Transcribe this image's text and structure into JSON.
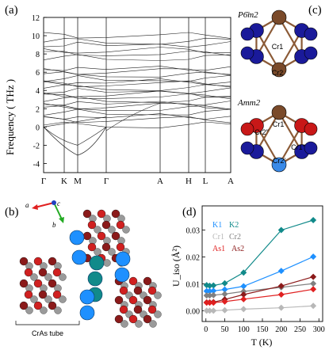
{
  "panels": {
    "a": "(a)",
    "b": "(b)",
    "c": "(c)",
    "d": "(d)"
  },
  "panel_a": {
    "ylabel": "Frequency ( THz )",
    "yticks": [
      "-4",
      "-2",
      "0",
      "2",
      "4",
      "6",
      "8",
      "10",
      "12"
    ],
    "xticks": [
      "Γ",
      "K",
      "M",
      "Γ",
      "A",
      "H",
      "L",
      "A"
    ]
  },
  "panel_b": {
    "axis_a": "a",
    "axis_b": "b",
    "axis_c": "c",
    "tube_label": "CrAs tube"
  },
  "panel_c": {
    "group1": "P6̄m2",
    "group2": "Amm2",
    "top_cr1": "Cr1",
    "top_cr2": "Cr2",
    "bot_cr1p": "Cr1′",
    "bot_cr2pp": "Cr2″",
    "bot_cr1pp": "Cr1″",
    "bot_cr2p": "Cr2′"
  },
  "chart_data": {
    "type": "line",
    "title": "",
    "xlabel": "T (K)",
    "ylabel": "U_iso (Å²)",
    "xlim": [
      -10,
      310
    ],
    "ylim": [
      -0.004,
      0.039
    ],
    "xticks": [
      "0",
      "50",
      "100",
      "150",
      "200",
      "250",
      "300"
    ],
    "yticks": [
      "0.00",
      "0.01",
      "0.02",
      "0.03"
    ],
    "legend": [
      {
        "name": "K1",
        "color": "#1e90ff"
      },
      {
        "name": "K2",
        "color": "#118a8a"
      },
      {
        "name": "Cr1",
        "color": "#b8b8b8"
      },
      {
        "name": "Cr2",
        "color": "#808080"
      },
      {
        "name": "As1",
        "color": "#e02020"
      },
      {
        "name": "As2",
        "color": "#8b1a1a"
      }
    ],
    "series": [
      {
        "name": "K2",
        "color": "#118a8a",
        "x": [
          2,
          10,
          20,
          50,
          100,
          200,
          285
        ],
        "y": [
          0.0095,
          0.0093,
          0.0094,
          0.0102,
          0.0142,
          0.03,
          0.0337
        ]
      },
      {
        "name": "K1",
        "color": "#1e90ff",
        "x": [
          2,
          10,
          20,
          50,
          100,
          200,
          285
        ],
        "y": [
          0.0073,
          0.0073,
          0.0074,
          0.0079,
          0.0091,
          0.0148,
          0.0201
        ]
      },
      {
        "name": "Cr2",
        "color": "#808080",
        "x": [
          2,
          10,
          20,
          50,
          100,
          200,
          285
        ],
        "y": [
          0.0057,
          0.0057,
          0.0058,
          0.0062,
          0.0072,
          0.0087,
          0.0101
        ]
      },
      {
        "name": "As2",
        "color": "#8b1a1a",
        "x": [
          2,
          10,
          20,
          50,
          100,
          200,
          285
        ],
        "y": [
          0.0031,
          0.0031,
          0.0032,
          0.0042,
          0.006,
          0.0092,
          0.0126
        ]
      },
      {
        "name": "As1",
        "color": "#e02020",
        "x": [
          2,
          10,
          20,
          50,
          100,
          200,
          285
        ],
        "y": [
          0.003,
          0.003,
          0.003,
          0.0034,
          0.0043,
          0.006,
          0.008
        ]
      },
      {
        "name": "Cr1",
        "color": "#b8b8b8",
        "x": [
          2,
          10,
          20,
          50,
          100,
          200,
          285
        ],
        "y": [
          0.0,
          0.0,
          0.0,
          0.0002,
          0.0006,
          0.0011,
          0.0018
        ]
      }
    ]
  }
}
